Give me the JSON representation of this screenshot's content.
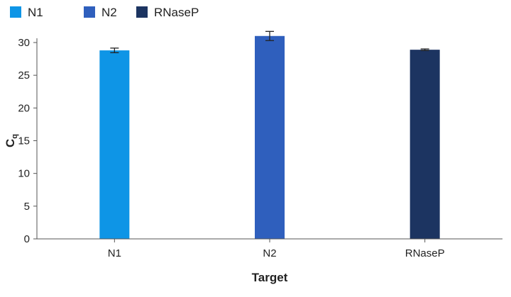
{
  "chart_data": {
    "type": "bar",
    "categories": [
      "N1",
      "N2",
      "RNaseP"
    ],
    "values": [
      28.8,
      31.0,
      28.9
    ],
    "errors": [
      0.35,
      0.7,
      0.12
    ],
    "colors": [
      "#0e95e6",
      "#2f5fbd",
      "#1c3461"
    ],
    "legend": [
      "N1",
      "N2",
      "RNaseP"
    ],
    "legend_position": "top-left",
    "xlabel": "Target",
    "ylabel": "C",
    "ylabel_subscript": "q",
    "ylim": [
      0,
      30
    ],
    "yticks": [
      0,
      5,
      10,
      15,
      20,
      25,
      30
    ],
    "grid": false
  }
}
